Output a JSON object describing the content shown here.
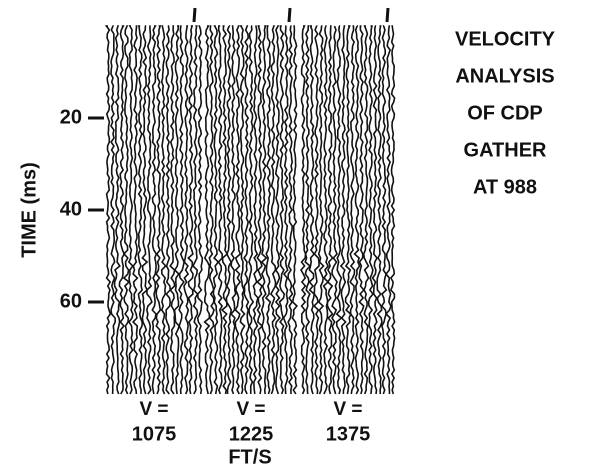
{
  "chart_data": {
    "type": "seismic",
    "title_lines": [
      "VELOCITY",
      "ANALYSIS",
      "OF CDP",
      "GATHER",
      "AT 988"
    ],
    "ylabel": "TIME (ms)",
    "ylim": [
      0,
      80
    ],
    "yticks": [
      20,
      40,
      60
    ],
    "panel_label": "V =",
    "velocities": [
      1075,
      1225,
      1375
    ],
    "xlabel": "FT/S"
  }
}
